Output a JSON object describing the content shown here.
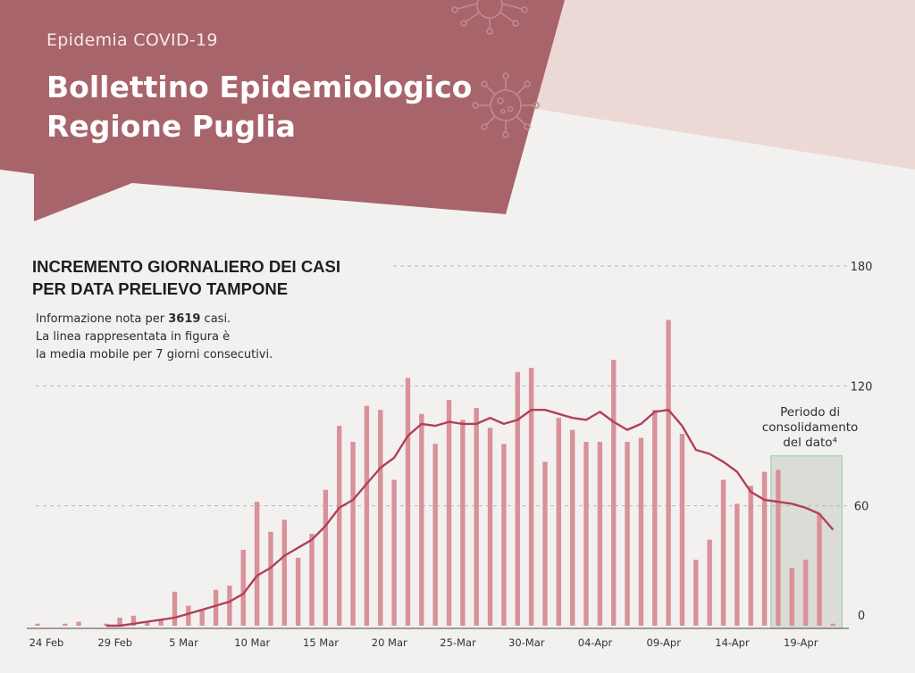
{
  "header": {
    "subtitle": "Epidemia COVID-19",
    "title_line1": "Bollettino Epidemiologico",
    "title_line2": "Regione Puglia"
  },
  "chart": {
    "title_line1": "INCREMENTO GIORNALIERO DEI CASI",
    "title_line2": "PER DATA PRELIEVO TAMPONE",
    "note_prefix": "Informazione nota per ",
    "note_count": "3619",
    "note_suffix": " casi.",
    "note_line2": "La linea rappresentata in figura è",
    "note_line3": "la media mobile per 7 giorni consecutivi.",
    "consolidation_label": [
      "Periodo di",
      "consolidamento",
      "del dato⁴"
    ]
  },
  "colors": {
    "banner": "#a8646b",
    "banner_light": "#ecd8d5",
    "bar": "#d9919a",
    "line": "#b0405a",
    "consolidation_fill": "#dcdcd6",
    "consolidation_border": "#a9d3c2"
  },
  "chart_data": {
    "type": "bar",
    "title": "INCREMENTO GIORNALIERO DEI CASI PER DATA PRELIEVO TAMPONE",
    "xlabel": "",
    "ylabel": "",
    "ylim": [
      0,
      180
    ],
    "yticks": [
      0,
      60,
      120,
      180
    ],
    "grid": true,
    "x_tick_labels": [
      "24 Feb",
      "29 Feb",
      "5 Mar",
      "10 Mar",
      "15 Mar",
      "20 Mar",
      "25-Mar",
      "30-Mar",
      "04-Apr",
      "09-Apr",
      "14-Apr",
      "19-Apr"
    ],
    "categories": [
      "24 Feb",
      "25 Feb",
      "26 Feb",
      "27 Feb",
      "28 Feb",
      "29 Feb",
      "1 Mar",
      "2 Mar",
      "3 Mar",
      "4 Mar",
      "5 Mar",
      "6 Mar",
      "7 Mar",
      "8 Mar",
      "9 Mar",
      "10 Mar",
      "11 Mar",
      "12 Mar",
      "13 Mar",
      "14 Mar",
      "15 Mar",
      "16 Mar",
      "17 Mar",
      "18 Mar",
      "19 Mar",
      "20 Mar",
      "21 Mar",
      "22 Mar",
      "23 Mar",
      "24 Mar",
      "25 Mar",
      "26 Mar",
      "27 Mar",
      "28 Mar",
      "29 Mar",
      "30 Mar",
      "31 Mar",
      "1 Apr",
      "2 Apr",
      "3 Apr",
      "4 Apr",
      "5 Apr",
      "6 Apr",
      "7 Apr",
      "8 Apr",
      "9 Apr",
      "10 Apr",
      "11 Apr",
      "12 Apr",
      "13 Apr",
      "14 Apr",
      "15 Apr",
      "16 Apr",
      "17 Apr",
      "18 Apr",
      "19 Apr",
      "20 Apr",
      "21 Apr",
      "22 Apr"
    ],
    "series": [
      {
        "type": "bar",
        "values": [
          1,
          0,
          1,
          2,
          0,
          1,
          4,
          5,
          2,
          3,
          17,
          10,
          8,
          18,
          20,
          38,
          62,
          47,
          53,
          34,
          46,
          68,
          100,
          92,
          110,
          108,
          73,
          124,
          106,
          91,
          113,
          103,
          109,
          99,
          91,
          127,
          129,
          82,
          104,
          98,
          92,
          92,
          133,
          92,
          94,
          108,
          153,
          96,
          33,
          43,
          73,
          61,
          70,
          77,
          78,
          29,
          33,
          56,
          1
        ]
      },
      {
        "type": "line",
        "values": [
          0,
          0,
          0,
          0,
          0,
          0,
          0,
          1,
          2,
          3,
          4,
          6,
          8,
          10,
          12,
          16,
          25,
          29,
          35,
          39,
          43,
          50,
          59,
          63,
          71,
          79,
          84,
          95,
          101,
          100,
          102,
          101,
          101,
          104,
          101,
          103,
          108,
          108,
          106,
          104,
          103,
          107,
          102,
          98,
          101,
          107,
          108,
          100,
          88,
          86,
          82,
          77,
          67,
          63,
          62,
          61,
          59,
          56,
          48
        ]
      }
    ],
    "consolidation_period": {
      "from": "18 Apr",
      "to": "22 Apr"
    }
  }
}
